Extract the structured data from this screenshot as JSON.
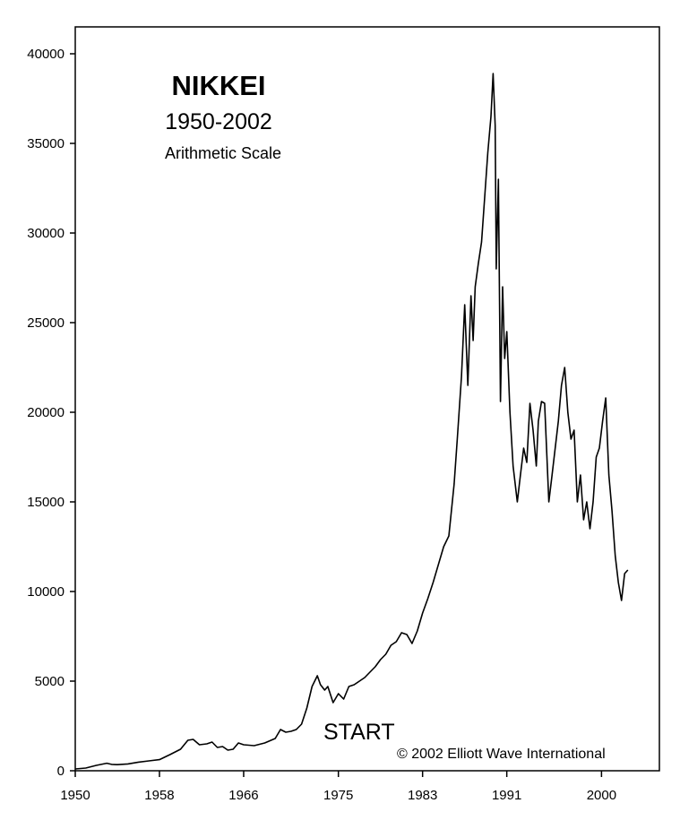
{
  "chart_data": {
    "type": "line",
    "title": "NIKKEI",
    "subtitle": "1950-2002",
    "scale_note": "Arithmetic Scale",
    "xlabel": "",
    "ylabel": "",
    "xlim": [
      1950,
      2005.5
    ],
    "ylim": [
      0,
      41500
    ],
    "x_ticks": [
      1950,
      1958,
      1966,
      1975,
      1983,
      1991,
      2000
    ],
    "x_tick_labels": [
      "1950",
      "1958",
      "1966",
      "1975",
      "1983",
      "1991",
      "2000"
    ],
    "y_ticks": [
      0,
      5000,
      10000,
      15000,
      20000,
      25000,
      30000,
      35000,
      40000
    ],
    "y_tick_labels": [
      "0",
      "5000",
      "10000",
      "15000",
      "20000",
      "25000",
      "30000",
      "35000",
      "40000"
    ],
    "grid": false,
    "legend": "none",
    "line_color": "#000000",
    "annotations": [
      {
        "text": "START"
      },
      {
        "text": "© 2002 Elliott Wave International"
      }
    ],
    "series": [
      {
        "x": [
          1950.0,
          1951.0,
          1952.0,
          1953.0,
          1953.5,
          1954.0,
          1955.0,
          1956.0,
          1957.0,
          1958.0,
          1959.0,
          1960.0,
          1960.7,
          1961.2,
          1961.8,
          1962.5,
          1963.0,
          1963.5,
          1964.0,
          1964.5,
          1965.0,
          1965.5,
          1966.0,
          1967.0,
          1968.0,
          1969.0,
          1969.5,
          1970.0,
          1970.5,
          1971.0,
          1971.5,
          1972.0,
          1972.5,
          1973.0,
          1973.3,
          1973.7,
          1974.0,
          1974.5,
          1975.0,
          1975.5,
          1976.0,
          1976.5,
          1977.0,
          1977.5,
          1978.0,
          1978.5,
          1979.0,
          1979.5,
          1980.0,
          1980.5,
          1981.0,
          1981.5,
          1982.0,
          1982.5,
          1983.0,
          1983.5,
          1984.0,
          1984.5,
          1985.0,
          1985.5,
          1986.0,
          1986.3,
          1986.7,
          1987.0,
          1987.3,
          1987.6,
          1987.8,
          1988.0,
          1988.3,
          1988.6,
          1988.9,
          1989.2,
          1989.5,
          1989.7,
          1989.9,
          1990.0,
          1990.2,
          1990.4,
          1990.6,
          1990.8,
          1991.0,
          1991.3,
          1991.6,
          1992.0,
          1992.3,
          1992.6,
          1992.9,
          1993.2,
          1993.5,
          1993.8,
          1994.0,
          1994.3,
          1994.6,
          1995.0,
          1995.3,
          1995.6,
          1995.9,
          1996.2,
          1996.5,
          1996.8,
          1997.1,
          1997.4,
          1997.7,
          1998.0,
          1998.3,
          1998.6,
          1998.9,
          1999.2,
          1999.5,
          1999.8,
          2000.1,
          2000.4,
          2000.7,
          2001.0,
          2001.3,
          2001.6,
          2001.9,
          2002.2,
          2002.5
        ],
        "values": [
          100,
          150,
          300,
          420,
          350,
          340,
          380,
          480,
          550,
          620,
          900,
          1200,
          1700,
          1750,
          1450,
          1500,
          1600,
          1300,
          1350,
          1150,
          1200,
          1550,
          1450,
          1400,
          1550,
          1800,
          2300,
          2150,
          2200,
          2300,
          2600,
          3500,
          4700,
          5300,
          4800,
          4500,
          4700,
          3800,
          4300,
          4000,
          4700,
          4800,
          5000,
          5200,
          5500,
          5800,
          6200,
          6500,
          7000,
          7200,
          7700,
          7600,
          7100,
          7800,
          8800,
          9600,
          10500,
          11500,
          12500,
          13100,
          16000,
          18500,
          22000,
          26000,
          21500,
          26500,
          24000,
          27000,
          28300,
          29500,
          32000,
          34500,
          36500,
          38900,
          36000,
          28000,
          33000,
          20600,
          27000,
          23000,
          24500,
          20000,
          17000,
          15000,
          16500,
          18000,
          17200,
          20500,
          19000,
          17000,
          19500,
          20600,
          20500,
          15000,
          16500,
          18000,
          19500,
          21500,
          22500,
          20000,
          18500,
          19000,
          15000,
          16500,
          14000,
          15000,
          13500,
          15000,
          17500,
          18000,
          19500,
          20800,
          16500,
          14500,
          12000,
          10500,
          9500,
          11000,
          11200
        ]
      }
    ]
  }
}
